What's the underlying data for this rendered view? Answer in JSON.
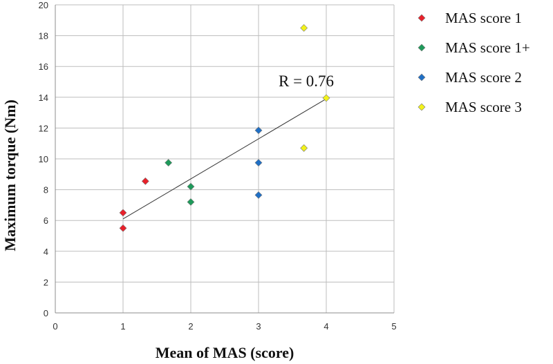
{
  "chart_data": {
    "type": "scatter",
    "xlabel": "Mean of MAS (score)",
    "ylabel": "Maximum torque (Nm)",
    "xlim": [
      0,
      5
    ],
    "ylim": [
      0,
      20
    ],
    "x_ticks": [
      "0",
      "1",
      "2",
      "3",
      "4",
      "5"
    ],
    "y_ticks": [
      "0",
      "2",
      "4",
      "6",
      "8",
      "10",
      "12",
      "14",
      "16",
      "18",
      "20"
    ],
    "grid": true,
    "legend_position": "right",
    "annotation": "R = 0.76",
    "trendline": {
      "x": [
        1,
        4
      ],
      "y": [
        6.1,
        13.9
      ]
    },
    "series": [
      {
        "name": "MAS score 1",
        "color": "#e8202a",
        "points": [
          [
            1,
            6.5
          ],
          [
            1,
            5.5
          ],
          [
            1.33,
            8.55
          ]
        ]
      },
      {
        "name": "MAS score 1+",
        "color": "#1e9a5a",
        "points": [
          [
            1.67,
            9.75
          ],
          [
            2,
            8.2
          ],
          [
            2,
            7.2
          ]
        ]
      },
      {
        "name": "MAS score 2",
        "color": "#1f6fc5",
        "points": [
          [
            3,
            11.85
          ],
          [
            3,
            9.75
          ],
          [
            3,
            7.65
          ]
        ]
      },
      {
        "name": "MAS score 3",
        "color": "#f2f21a",
        "points": [
          [
            3.67,
            18.5
          ],
          [
            4,
            13.95
          ],
          [
            3.67,
            10.7
          ]
        ]
      }
    ]
  }
}
